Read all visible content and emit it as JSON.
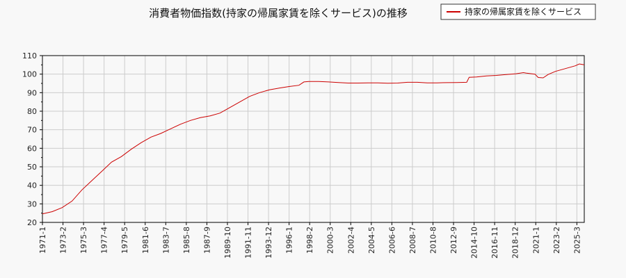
{
  "chart_data": {
    "type": "line",
    "title": "消費者物価指数(持家の帰属家賃を除くサービス)の推移",
    "xlabel": "",
    "ylabel": "",
    "ylim": [
      20,
      110
    ],
    "yticks": [
      20,
      30,
      40,
      50,
      60,
      70,
      80,
      90,
      100,
      110
    ],
    "xrange": [
      "1971-1",
      "2025-12"
    ],
    "xticks": [
      "1971-1",
      "1973-2",
      "1975-3",
      "1977-4",
      "1979-5",
      "1981-6",
      "1983-7",
      "1985-8",
      "1987-9",
      "1989-10",
      "1991-11",
      "1993-12",
      "1996-1",
      "1998-2",
      "2000-3",
      "2002-4",
      "2004-5",
      "2006-6",
      "2008-7",
      "2010-8",
      "2012-9",
      "2014-10",
      "2016-11",
      "2018-12",
      "2021-1",
      "2023-2",
      "2025-3"
    ],
    "grid": true,
    "legend_position": "top-right",
    "series": [
      {
        "name": "持家の帰属家賃を除くサービス",
        "color": "#cc0000",
        "points": [
          [
            "1971-1",
            24.6
          ],
          [
            "1972-1",
            25.8
          ],
          [
            "1973-1",
            28.0
          ],
          [
            "1974-1",
            31.5
          ],
          [
            "1975-1",
            37.5
          ],
          [
            "1976-1",
            42.5
          ],
          [
            "1977-1",
            47.5
          ],
          [
            "1978-1",
            52.5
          ],
          [
            "1979-1",
            55.5
          ],
          [
            "1980-1",
            59.5
          ],
          [
            "1981-1",
            63.0
          ],
          [
            "1982-1",
            66.0
          ],
          [
            "1983-1",
            68.0
          ],
          [
            "1984-1",
            70.5
          ],
          [
            "1985-1",
            73.0
          ],
          [
            "1986-1",
            75.0
          ],
          [
            "1987-1",
            76.5
          ],
          [
            "1988-1",
            77.5
          ],
          [
            "1989-1",
            79.0
          ],
          [
            "1990-1",
            82.0
          ],
          [
            "1991-1",
            85.0
          ],
          [
            "1992-1",
            88.0
          ],
          [
            "1993-1",
            90.0
          ],
          [
            "1994-1",
            91.5
          ],
          [
            "1995-1",
            92.5
          ],
          [
            "1996-1",
            93.3
          ],
          [
            "1997-1",
            94.0
          ],
          [
            "1997-7",
            95.8
          ],
          [
            "1998-1",
            96.0
          ],
          [
            "1999-1",
            96.0
          ],
          [
            "2000-1",
            95.8
          ],
          [
            "2001-1",
            95.5
          ],
          [
            "2002-1",
            95.2
          ],
          [
            "2003-1",
            95.2
          ],
          [
            "2004-1",
            95.3
          ],
          [
            "2005-1",
            95.3
          ],
          [
            "2006-1",
            95.1
          ],
          [
            "2007-1",
            95.2
          ],
          [
            "2008-1",
            95.6
          ],
          [
            "2009-1",
            95.6
          ],
          [
            "2010-1",
            95.3
          ],
          [
            "2011-1",
            95.3
          ],
          [
            "2012-1",
            95.4
          ],
          [
            "2013-1",
            95.5
          ],
          [
            "2014-1",
            95.6
          ],
          [
            "2014-4",
            98.3
          ],
          [
            "2015-1",
            98.5
          ],
          [
            "2016-1",
            99.0
          ],
          [
            "2017-1",
            99.3
          ],
          [
            "2018-1",
            99.8
          ],
          [
            "2019-1",
            100.2
          ],
          [
            "2019-10",
            100.8
          ],
          [
            "2020-1",
            100.6
          ],
          [
            "2020-12",
            100.0
          ],
          [
            "2021-4",
            98.2
          ],
          [
            "2021-10",
            98.0
          ],
          [
            "2022-4",
            99.8
          ],
          [
            "2023-1",
            101.5
          ],
          [
            "2024-1",
            103.0
          ],
          [
            "2025-1",
            104.5
          ],
          [
            "2025-6",
            105.5
          ],
          [
            "2025-12",
            105.0
          ]
        ]
      }
    ]
  }
}
